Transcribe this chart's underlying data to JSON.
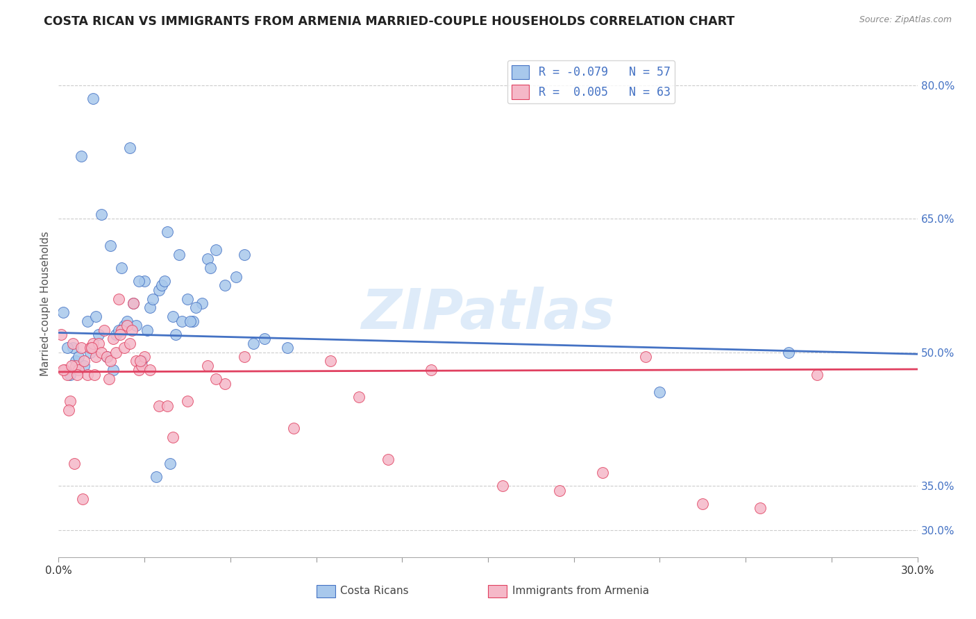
{
  "title": "COSTA RICAN VS IMMIGRANTS FROM ARMENIA MARRIED-COUPLE HOUSEHOLDS CORRELATION CHART",
  "source": "Source: ZipAtlas.com",
  "ylabel": "Married-couple Households",
  "right_yticks": [
    80.0,
    65.0,
    50.0,
    35.0,
    30.0
  ],
  "xmin": 0.0,
  "xmax": 30.0,
  "ymin": 27.0,
  "ymax": 84.0,
  "legend_r1": "R = -0.079",
  "legend_n1": "N = 57",
  "legend_r2": "R =  0.005",
  "legend_n2": "N = 63",
  "color_blue": "#A8C8EC",
  "color_pink": "#F5B8C8",
  "trendline_blue": "#4472C4",
  "trendline_pink": "#E04060",
  "background": "#FFFFFF",
  "watermark": "ZIPatlas",
  "blue_x": [
    1.2,
    2.5,
    3.0,
    0.8,
    1.8,
    2.2,
    3.5,
    4.2,
    5.0,
    4.8,
    2.8,
    1.5,
    3.8,
    5.5,
    6.2,
    4.5,
    3.2,
    2.0,
    1.0,
    0.5,
    0.6,
    1.1,
    1.4,
    2.3,
    2.6,
    3.1,
    3.6,
    4.0,
    0.4,
    0.9,
    1.7,
    2.9,
    3.3,
    4.7,
    5.8,
    0.3,
    1.3,
    1.9,
    2.4,
    3.4,
    3.9,
    4.3,
    0.15,
    4.6,
    5.2,
    6.5,
    7.2,
    8.0,
    5.3,
    4.1,
    2.7,
    0.7,
    3.7,
    2.1,
    6.8,
    21.0,
    25.5
  ],
  "blue_y": [
    78.5,
    73.0,
    58.0,
    72.0,
    62.0,
    59.5,
    57.0,
    61.0,
    55.5,
    55.0,
    58.0,
    65.5,
    63.5,
    61.5,
    58.5,
    56.0,
    55.0,
    52.0,
    53.5,
    50.5,
    49.0,
    50.0,
    52.0,
    53.0,
    55.5,
    52.5,
    57.5,
    54.0,
    47.5,
    48.5,
    49.5,
    49.0,
    56.0,
    53.5,
    57.5,
    50.5,
    54.0,
    48.0,
    53.5,
    36.0,
    37.5,
    53.5,
    54.5,
    53.5,
    60.5,
    61.0,
    51.5,
    50.5,
    59.5,
    52.0,
    53.0,
    49.5,
    58.0,
    52.5,
    51.0,
    45.5,
    50.0
  ],
  "pink_x": [
    0.1,
    0.2,
    0.3,
    0.4,
    0.5,
    0.6,
    0.7,
    0.8,
    0.9,
    1.0,
    1.1,
    1.2,
    1.3,
    1.4,
    1.5,
    1.6,
    1.7,
    1.8,
    1.9,
    2.0,
    2.1,
    2.2,
    2.3,
    2.4,
    2.5,
    2.6,
    2.7,
    2.8,
    2.9,
    3.0,
    3.2,
    3.5,
    4.0,
    4.5,
    5.2,
    5.8,
    6.5,
    8.2,
    9.5,
    10.5,
    11.5,
    13.0,
    15.5,
    17.5,
    19.0,
    20.5,
    22.5,
    24.5,
    26.5,
    0.15,
    0.35,
    0.55,
    0.65,
    0.85,
    1.15,
    2.15,
    2.55,
    3.8,
    5.5,
    1.25,
    0.45,
    1.75,
    2.85
  ],
  "pink_y": [
    52.0,
    48.0,
    47.5,
    44.5,
    51.0,
    48.5,
    48.0,
    50.5,
    49.0,
    47.5,
    50.5,
    51.0,
    49.5,
    51.0,
    50.0,
    52.5,
    49.5,
    49.0,
    51.5,
    50.0,
    56.0,
    52.5,
    50.5,
    53.0,
    51.0,
    55.5,
    49.0,
    48.0,
    48.5,
    49.5,
    48.0,
    44.0,
    40.5,
    44.5,
    48.5,
    46.5,
    49.5,
    41.5,
    49.0,
    45.0,
    38.0,
    48.0,
    35.0,
    34.5,
    36.5,
    49.5,
    33.0,
    32.5,
    47.5,
    48.0,
    43.5,
    37.5,
    47.5,
    33.5,
    50.5,
    52.0,
    52.5,
    44.0,
    47.0,
    47.5,
    48.5,
    47.0,
    49.0
  ],
  "xtick_positions": [
    0.0,
    3.0,
    6.0,
    9.0,
    12.0,
    15.0,
    18.0,
    21.0,
    24.0,
    27.0,
    30.0
  ],
  "blue_trendline_y0": 52.2,
  "blue_trendline_y1": 49.8,
  "pink_trendline_y0": 47.8,
  "pink_trendline_y1": 48.1
}
